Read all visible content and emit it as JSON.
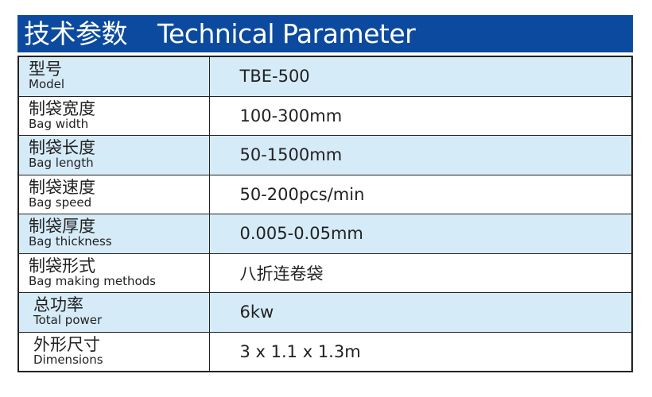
{
  "header": {
    "title_zh": "技术参数",
    "title_en": "Technical Parameter",
    "color": "#0b4a9e"
  },
  "rows": [
    {
      "label_zh": "型号",
      "label_en": "Model",
      "value": "TBE-500"
    },
    {
      "label_zh": "制袋宽度",
      "label_en": "Bag width",
      "value": "100-300mm"
    },
    {
      "label_zh": "制袋长度",
      "label_en": "Bag length",
      "value": "50-1500mm"
    },
    {
      "label_zh": "制袋速度",
      "label_en": "Bag speed",
      "value": "50-200pcs/min"
    },
    {
      "label_zh": "制袋厚度",
      "label_en": "Bag thickness",
      "value": "0.005-0.05mm"
    },
    {
      "label_zh": "制袋形式",
      "label_en": "Bag making methods",
      "value": "八折连卷袋"
    },
    {
      "label_zh": "总功率",
      "label_en": "Total power",
      "value": "6kw"
    },
    {
      "label_zh": "外形尺寸",
      "label_en": "Dimensions",
      "value": "3 x 1.1 x 1.3m"
    }
  ],
  "alt_row_color": "#d6ebf8"
}
